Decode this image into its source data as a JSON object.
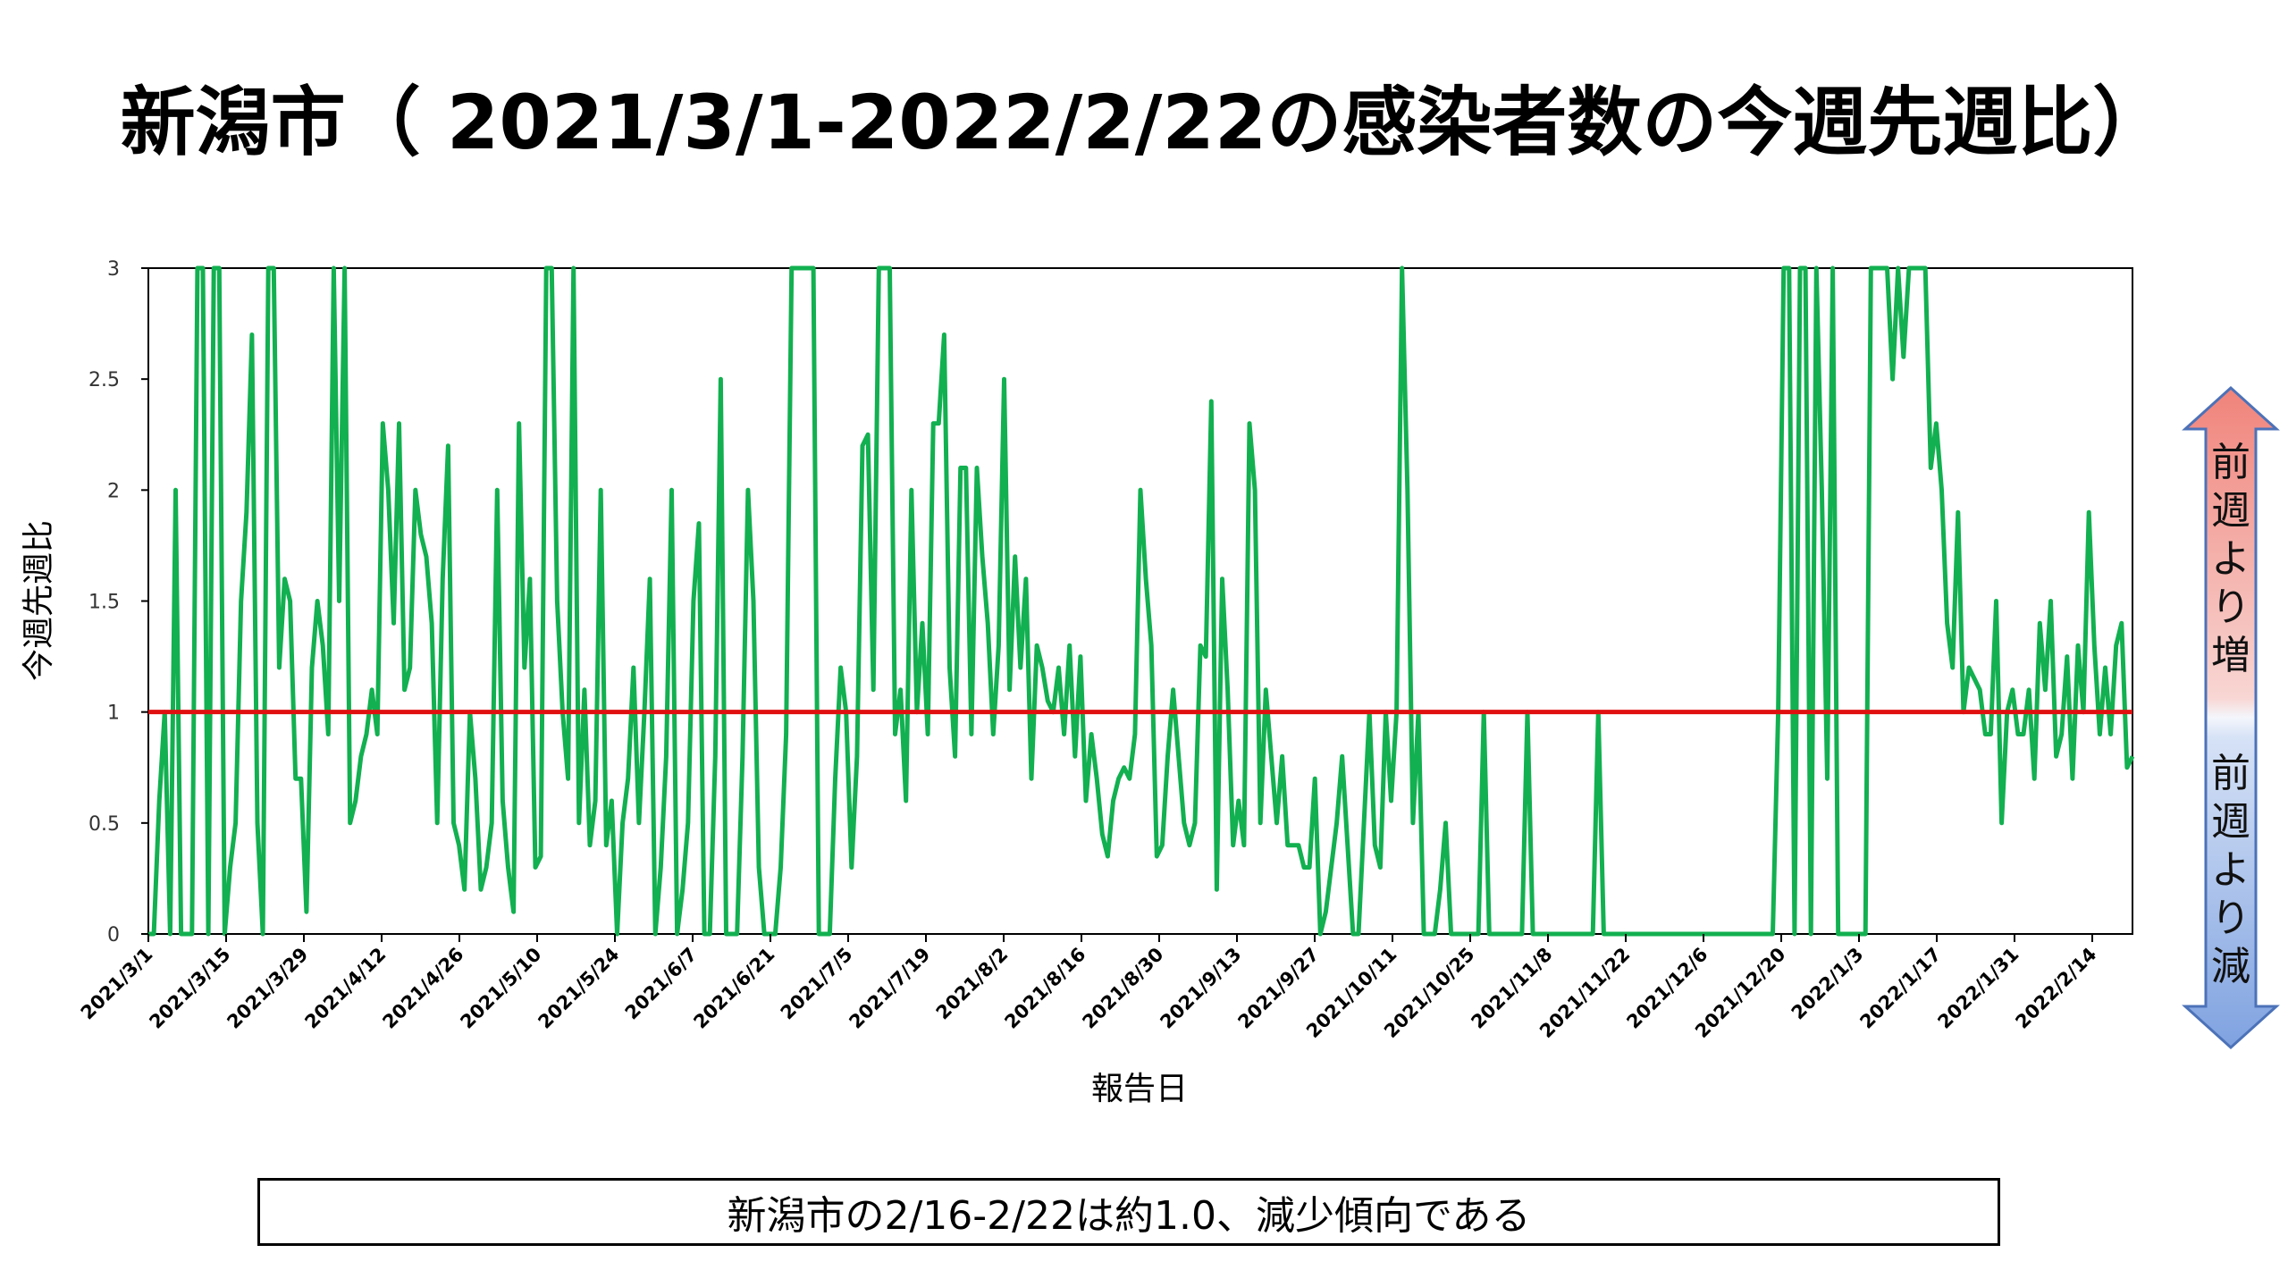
{
  "slide": {
    "title": "新潟市（ 2021/3/1-2022/2/22の感染者数の今週先週比）",
    "caption": "新潟市の2/16-2/22は約1.0、減少傾向である",
    "arrow_up_label": "前週より増",
    "arrow_down_label": "前週より減"
  },
  "chart_data": {
    "type": "line",
    "xlabel": "報告日",
    "ylabel": "今週先週比",
    "ylim": [
      0,
      3
    ],
    "yticks": [
      "0",
      "0.5",
      "1",
      "1.5",
      "2",
      "2.5",
      "3"
    ],
    "xticks": [
      "2021/3/1",
      "2021/3/15",
      "2021/3/29",
      "2021/4/12",
      "2021/4/26",
      "2021/5/10",
      "2021/5/24",
      "2021/6/7",
      "2021/6/21",
      "2021/7/5",
      "2021/7/19",
      "2021/8/2",
      "2021/8/16",
      "2021/8/30",
      "2021/9/13",
      "2021/9/27",
      "2021/10/11",
      "2021/10/25",
      "2021/11/8",
      "2021/11/22",
      "2021/12/6",
      "2021/12/20",
      "2022/1/3",
      "2022/1/17",
      "2022/1/31",
      "2022/2/14"
    ],
    "reference_line": {
      "y": 1,
      "color": "#e01010"
    },
    "series": [
      {
        "color": "#12b050",
        "values": [
          0,
          0,
          0.6,
          1,
          0,
          2,
          0,
          0,
          0,
          3,
          3,
          0,
          3,
          3,
          0,
          0.3,
          0.5,
          1.5,
          1.9,
          2.7,
          0.5,
          0,
          3,
          3,
          1.2,
          1.6,
          1.5,
          0.7,
          0.7,
          0.1,
          1.2,
          1.5,
          1.3,
          0.9,
          3,
          1.5,
          3,
          0.5,
          0.6,
          0.8,
          0.9,
          1.1,
          0.9,
          2.3,
          2,
          1.4,
          2.3,
          1.1,
          1.2,
          2,
          1.8,
          1.7,
          1.4,
          0.5,
          1.6,
          2.2,
          0.5,
          0.4,
          0.2,
          1,
          0.7,
          0.2,
          0.3,
          0.5,
          2,
          0.6,
          0.3,
          0.1,
          2.3,
          1.2,
          1.6,
          0.3,
          0.35,
          3,
          3,
          1.5,
          1,
          0.7,
          3,
          0.5,
          1.1,
          0.4,
          0.6,
          2,
          0.4,
          0.6,
          0,
          0.5,
          0.7,
          1.2,
          0.5,
          1,
          1.6,
          0,
          0.3,
          0.8,
          2,
          0,
          0.2,
          0.5,
          1.5,
          1.85,
          0,
          0,
          0.8,
          2.5,
          0,
          0,
          0,
          0.8,
          2,
          1.5,
          0.3,
          0,
          0,
          0,
          0.3,
          0.9,
          3,
          3,
          3,
          3,
          3,
          0,
          0,
          0,
          0.7,
          1.2,
          1,
          0.3,
          0.8,
          2.2,
          2.25,
          1.1,
          3,
          3,
          3,
          0.9,
          1.1,
          0.6,
          2,
          1,
          1.4,
          0.9,
          2.3,
          2.3,
          2.7,
          1.2,
          0.8,
          2.1,
          2.1,
          0.9,
          2.1,
          1.7,
          1.4,
          0.9,
          1.3,
          2.5,
          1.1,
          1.7,
          1.2,
          1.6,
          0.7,
          1.3,
          1.2,
          1.05,
          1,
          1.2,
          0.9,
          1.3,
          0.8,
          1.25,
          0.6,
          0.9,
          0.7,
          0.45,
          0.35,
          0.6,
          0.7,
          0.75,
          0.7,
          0.9,
          2,
          1.6,
          1.3,
          0.35,
          0.4,
          0.8,
          1.1,
          0.8,
          0.5,
          0.4,
          0.5,
          1.3,
          1.25,
          2.4,
          0.2,
          1.6,
          1.1,
          0.4,
          0.6,
          0.4,
          2.3,
          2,
          0.5,
          1.1,
          0.8,
          0.5,
          0.8,
          0.4,
          0.4,
          0.4,
          0.3,
          0.3,
          0.7,
          0,
          0.1,
          0.3,
          0.5,
          0.8,
          0.4,
          0,
          0,
          0.5,
          1,
          0.4,
          0.3,
          1,
          0.6,
          1,
          3,
          2,
          0.5,
          1,
          0,
          0,
          0,
          0.2,
          0.5,
          0,
          0,
          0,
          0,
          0,
          0,
          1,
          0,
          0,
          0,
          0,
          0,
          0,
          0,
          1,
          0,
          0,
          0,
          0,
          0,
          0,
          0,
          0,
          0,
          0,
          0,
          0,
          1,
          0,
          0,
          0,
          0,
          0,
          0,
          0,
          0,
          0,
          0,
          0,
          0,
          0,
          0,
          0,
          0,
          0,
          0,
          0,
          0,
          0,
          0,
          0,
          0,
          0,
          0,
          0,
          0,
          0,
          0,
          0,
          0,
          1,
          3,
          3,
          0,
          3,
          3,
          0,
          3,
          2,
          0.7,
          3,
          0,
          0,
          0,
          0,
          0,
          0,
          3,
          3,
          3,
          3,
          2.5,
          3,
          2.6,
          3,
          3,
          3,
          3,
          2.1,
          2.3,
          2,
          1.4,
          1.2,
          1.9,
          1,
          1.2,
          1.15,
          1.1,
          0.9,
          0.9,
          1.5,
          0.5,
          1,
          1.1,
          0.9,
          0.9,
          1.1,
          0.7,
          1.4,
          1.1,
          1.5,
          0.8,
          0.9,
          1.25,
          0.7,
          1.3,
          1,
          1.9,
          1.3,
          0.9,
          1.2,
          0.9,
          1.3,
          1.4,
          0.75,
          0.8
        ]
      }
    ]
  },
  "colors": {
    "line": "#12b050",
    "reference": "#e01010",
    "arrow_up_fill": "#f08a82",
    "arrow_down_fill": "#8eb0e8",
    "arrow_stroke": "#4c72b8"
  }
}
